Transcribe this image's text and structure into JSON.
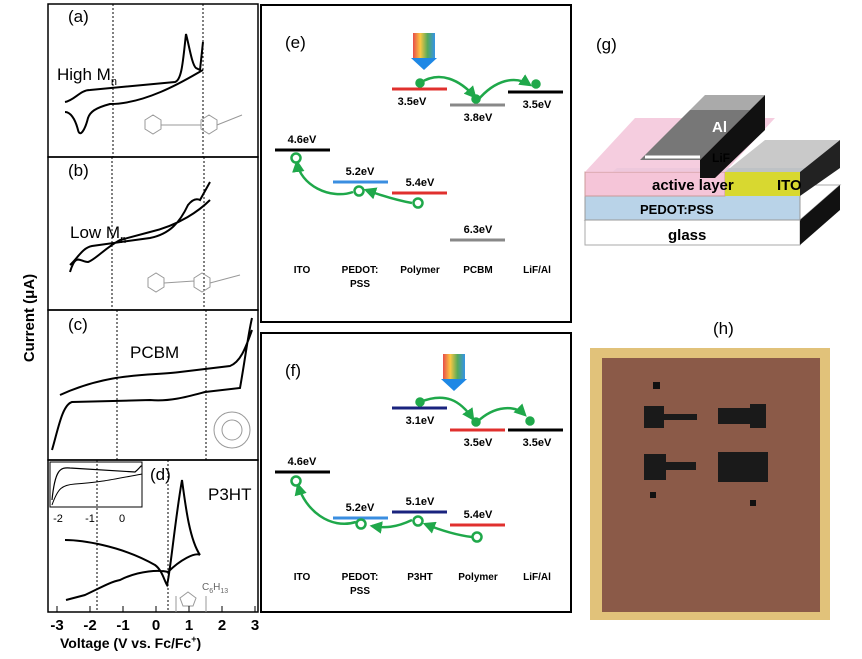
{
  "cv_panels": [
    {
      "label": "(a)",
      "annotation": "High M",
      "annotation_sub": "n"
    },
    {
      "label": "(b)",
      "annotation": "Low M",
      "annotation_sub": "n"
    },
    {
      "label": "(c)",
      "annotation": "PCBM"
    },
    {
      "label": "(d)",
      "annotation": "P3HT",
      "inset_ticks": [
        "-2",
        "-1",
        "0"
      ],
      "formula": [
        "C",
        "6",
        "H",
        "13"
      ]
    }
  ],
  "cv_axis": {
    "y_label": "Current (μA)",
    "x_label": "Voltage (V vs. Fc/Fc",
    "x_label_sup": "+",
    "x_label_end": ")",
    "xticks": [
      "-3",
      "-2",
      "-1",
      "0",
      "1",
      "2",
      "3"
    ]
  },
  "panel_e": {
    "label": "(e)",
    "levels": [
      "4.6eV",
      "5.2eV",
      "5.4eV",
      "6.3eV",
      "3.5eV",
      "3.8eV",
      "3.5eV"
    ],
    "materials": [
      "ITO",
      "PEDOT:",
      "PSS",
      "Polymer",
      "PCBM",
      "LiF/Al"
    ]
  },
  "panel_f": {
    "label": "(f)",
    "levels": [
      "4.6eV",
      "5.2eV",
      "5.1eV",
      "5.4eV",
      "3.1eV",
      "3.5eV",
      "3.5eV"
    ],
    "materials": [
      "ITO",
      "PEDOT:",
      "PSS",
      "P3HT",
      "Polymer",
      "LiF/Al"
    ]
  },
  "panel_g": {
    "label": "(g)",
    "layers": [
      "Al",
      "LiF",
      "active layer",
      "ITO",
      "PEDOT:PSS",
      "glass"
    ]
  },
  "panel_h": {
    "label": "(h)"
  }
}
